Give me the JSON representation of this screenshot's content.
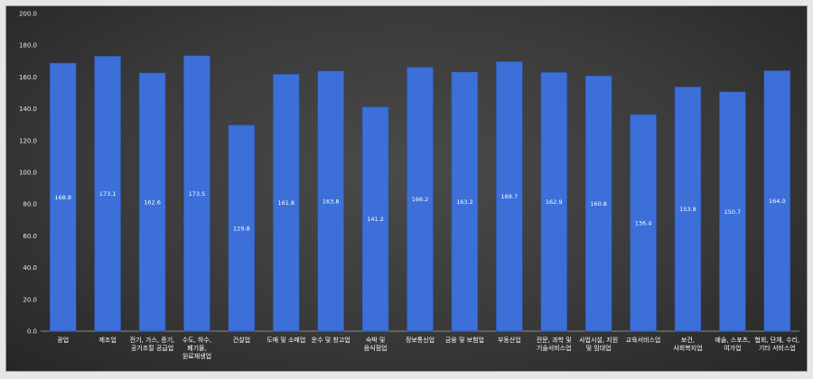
{
  "chart_data": {
    "type": "bar",
    "title": "",
    "xlabel": "",
    "ylabel": "",
    "ylim": [
      0,
      200
    ],
    "yticks": [
      "0.0",
      "20.0",
      "40.0",
      "60.0",
      "80.0",
      "100.0",
      "120.0",
      "140.0",
      "160.0",
      "180.0",
      "200.0"
    ],
    "grid": false,
    "legend": "none",
    "bar_color": "#3c6fd8",
    "categories": [
      [
        "광업"
      ],
      [
        "제조업"
      ],
      [
        "전기, 가스, 증기,",
        "공기조절 공급업"
      ],
      [
        "수도, 하수,",
        "폐기물,",
        "원료재생업"
      ],
      [
        "건설업"
      ],
      [
        "도매 및 소매업"
      ],
      [
        "운수 및 창고업"
      ],
      [
        "숙박 및",
        "음식점업"
      ],
      [
        "정보통신업"
      ],
      [
        "금융 및 보험업"
      ],
      [
        "부동산업"
      ],
      [
        "전문, 과학 및",
        "기술서비스업"
      ],
      [
        "사업시설, 지원",
        "및 임대업"
      ],
      [
        "교육서비스업"
      ],
      [
        "보건,",
        "사회복지업"
      ],
      [
        "예술, 스포츠,",
        "여가업"
      ],
      [
        "협회, 단체, 수리,",
        "기타 서비스업"
      ]
    ],
    "values": [
      168.8,
      173.1,
      162.6,
      173.5,
      129.8,
      161.8,
      163.8,
      141.2,
      166.2,
      163.2,
      169.7,
      162.9,
      160.8,
      136.4,
      153.8,
      150.7,
      164.0
    ],
    "value_labels": [
      "168.8",
      "173.1",
      "162.6",
      "173.5",
      "129.8",
      "161.8",
      "163.8",
      "141.2",
      "166.2",
      "163.2",
      "169.7",
      "162.9",
      "160.8",
      "136.4",
      "153.8",
      "150.7",
      "164.0"
    ]
  }
}
